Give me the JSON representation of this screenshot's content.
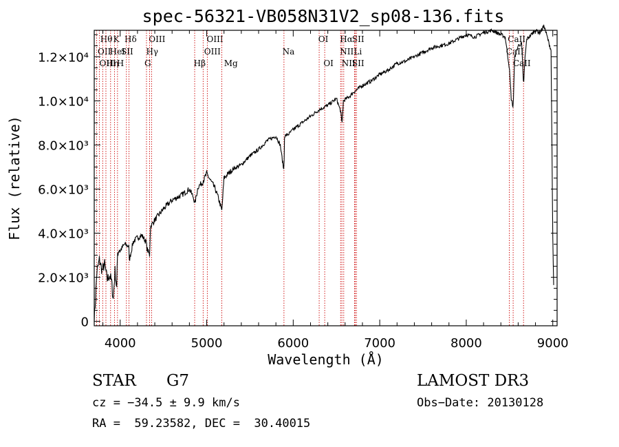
{
  "chart_data": {
    "type": "line",
    "title": "spec-56321-VB058N31V2_sp08-136.fits",
    "xlabel": "Wavelength (Å)",
    "ylabel": "Flux (relative)",
    "xlim": [
      3700,
      9050
    ],
    "ylim": [
      -200,
      13200
    ],
    "xticks": [
      {
        "value": 4000,
        "label": "4000"
      },
      {
        "value": 5000,
        "label": "5000"
      },
      {
        "value": 6000,
        "label": "6000"
      },
      {
        "value": 7000,
        "label": "7000"
      },
      {
        "value": 8000,
        "label": "8000"
      },
      {
        "value": 9000,
        "label": "9000"
      }
    ],
    "yticks": [
      {
        "value": 0,
        "label": "0"
      },
      {
        "value": 2000,
        "label": "2.0×10³"
      },
      {
        "value": 4000,
        "label": "4.0×10³"
      },
      {
        "value": 6000,
        "label": "6.0×10³"
      },
      {
        "value": 8000,
        "label": "8.0×10³"
      },
      {
        "value": 10000,
        "label": "1.0×10⁴"
      },
      {
        "value": 12000,
        "label": "1.2×10⁴"
      }
    ],
    "series": [
      {
        "name": "spectrum",
        "x": [
          3700,
          3710,
          3730,
          3760,
          3790,
          3820,
          3850,
          3880,
          3900,
          3920,
          3940,
          3960,
          3970,
          3990,
          4000,
          4050,
          4100,
          4102,
          4150,
          4200,
          4250,
          4300,
          4310,
          4340,
          4350,
          4400,
          4500,
          4600,
          4700,
          4800,
          4850,
          4861,
          4900,
          4950,
          5000,
          5100,
          5150,
          5175,
          5200,
          5300,
          5400,
          5500,
          5600,
          5700,
          5800,
          5850,
          5893,
          5900,
          5950,
          6000,
          6100,
          6200,
          6300,
          6400,
          6500,
          6550,
          6563,
          6580,
          6650,
          6700,
          6800,
          6900,
          7000,
          7100,
          7200,
          7300,
          7400,
          7500,
          7600,
          7700,
          7800,
          7900,
          8000,
          8100,
          8200,
          8300,
          8400,
          8450,
          8498,
          8520,
          8542,
          8560,
          8600,
          8640,
          8662,
          8680,
          8700,
          8750,
          8800,
          8850,
          8900,
          8950,
          8980,
          9000,
          9010
        ],
        "y": [
          0,
          700,
          2200,
          2800,
          2300,
          2600,
          1900,
          2100,
          1800,
          1000,
          2300,
          1500,
          3100,
          3300,
          3200,
          3500,
          3400,
          2700,
          3600,
          3800,
          3900,
          3600,
          3300,
          3000,
          4300,
          4600,
          5100,
          5500,
          5700,
          6000,
          5600,
          5300,
          6100,
          6300,
          6700,
          6000,
          5400,
          5000,
          6500,
          6900,
          7100,
          7500,
          7800,
          8200,
          8400,
          8000,
          6800,
          8400,
          8500,
          8700,
          9000,
          9300,
          9600,
          9800,
          10100,
          9500,
          8900,
          10000,
          10200,
          10400,
          10700,
          10900,
          11200,
          11400,
          11700,
          11800,
          12000,
          12200,
          12400,
          12500,
          12600,
          12800,
          13000,
          12900,
          13100,
          13200,
          13000,
          12900,
          11500,
          10100,
          9700,
          12000,
          12500,
          12600,
          10700,
          12000,
          12800,
          13000,
          13200,
          13100,
          13400,
          12700,
          12300,
          3800,
          1600
        ]
      }
    ],
    "lines": [
      {
        "row": 0,
        "label": "Hθ",
        "wave": 3798,
        "labelwave": 3770
      },
      {
        "row": 1,
        "label": "OII",
        "wave": 3727,
        "labelwave": 3740
      },
      {
        "row": 2,
        "label": "OIII",
        "wave": 3760,
        "labelwave": 3760
      },
      {
        "row": 0,
        "label": "K",
        "wave": 3934,
        "labelwave": 3920
      },
      {
        "row": 1,
        "label": "HeI",
        "wave": 3889,
        "labelwave": 3880
      },
      {
        "row": 2,
        "label": "Hη",
        "wave": 3835,
        "labelwave": 3840
      },
      {
        "row": 0,
        "label": "Hδ",
        "wave": 4102,
        "labelwave": 4050
      },
      {
        "row": 1,
        "label": "SII",
        "wave": 4072,
        "labelwave": 4010
      },
      {
        "row": 2,
        "label": "H",
        "wave": 3969,
        "labelwave": 3960
      },
      {
        "row": 0,
        "label": "OIII",
        "wave": 4363,
        "labelwave": 4330
      },
      {
        "row": 1,
        "label": "Hγ",
        "wave": 4340,
        "labelwave": 4300
      },
      {
        "row": 2,
        "label": "G",
        "wave": 4304,
        "labelwave": 4280
      },
      {
        "row": 0,
        "label": "OIII",
        "wave": 5007,
        "labelwave": 5000
      },
      {
        "row": 1,
        "label": "OIII",
        "wave": 4959,
        "labelwave": 4970
      },
      {
        "row": 2,
        "label": "Hβ",
        "wave": 4861,
        "labelwave": 4850
      },
      {
        "row": 2,
        "label": "Mg",
        "wave": 5175,
        "labelwave": 5200
      },
      {
        "row": 1,
        "label": "Na",
        "wave": 5893,
        "labelwave": 5875
      },
      {
        "row": 0,
        "label": "OI",
        "wave": 6300,
        "labelwave": 6290
      },
      {
        "row": 2,
        "label": "OI",
        "wave": 6364,
        "labelwave": 6350
      },
      {
        "row": 0,
        "label": "Hα",
        "wave": 6563,
        "labelwave": 6540
      },
      {
        "row": 1,
        "label": "NII",
        "wave": 6548,
        "labelwave": 6540
      },
      {
        "row": 2,
        "label": "NII",
        "wave": 6584,
        "labelwave": 6560
      },
      {
        "row": 0,
        "label": "SII",
        "wave": 6717,
        "labelwave": 6680
      },
      {
        "row": 1,
        "label": "Li",
        "wave": 6708,
        "labelwave": 6700
      },
      {
        "row": 2,
        "label": "SII",
        "wave": 6731,
        "labelwave": 6680
      },
      {
        "row": 0,
        "label": "CaII",
        "wave": 8662,
        "labelwave": 8480
      },
      {
        "row": 1,
        "label": "CaII",
        "wave": 8498,
        "labelwave": 8460
      },
      {
        "row": 2,
        "label": "CaII",
        "wave": 8542,
        "labelwave": 8540
      }
    ],
    "colors": {
      "spectrum": "#000000",
      "lines": "#cc0000"
    }
  },
  "info": {
    "object_type": "STAR",
    "subclass": "G7",
    "survey": "LAMOST DR3",
    "redshift": "cz = −34.5 ± 9.9 km/s",
    "obs_date": "Obs−Date: 20130128",
    "coords": "RA =  59.23582, DEC =  30.40015"
  }
}
